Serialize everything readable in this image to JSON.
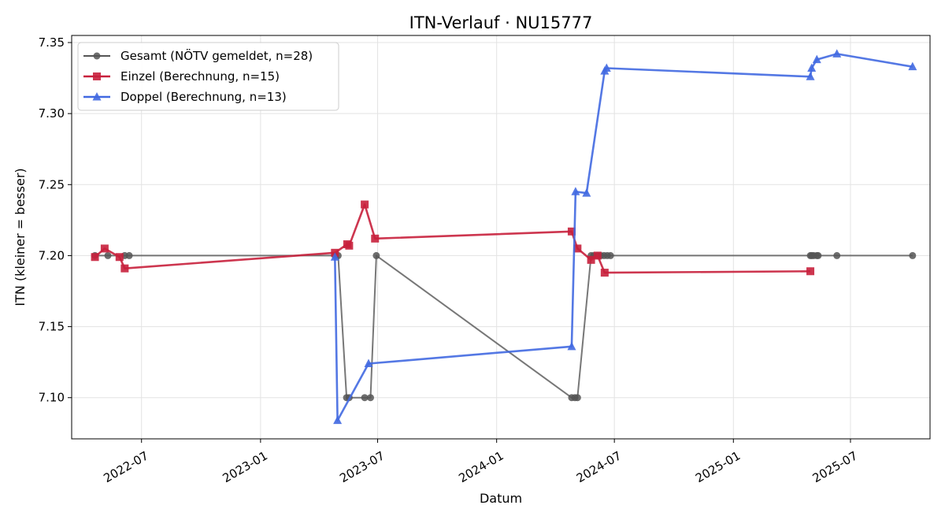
{
  "chart_data": {
    "type": "line",
    "title": "ITN-Verlauf · NU15777",
    "xlabel": "Datum",
    "ylabel": "ITN  (kleiner = besser)",
    "xlim": [
      "2022-03-15",
      "2025-11-01"
    ],
    "ylim": [
      7.071,
      7.355
    ],
    "grid": true,
    "legend_position": "top-left",
    "x_ticks": [
      "2022-07-01",
      "2023-01-01",
      "2023-07-01",
      "2024-01-01",
      "2024-07-01",
      "2025-01-01",
      "2025-07-01"
    ],
    "x_tick_labels": [
      "2022-07",
      "2023-01",
      "2023-07",
      "2024-01",
      "2024-07",
      "2025-01",
      "2025-07"
    ],
    "y_ticks": [
      7.1,
      7.15,
      7.2,
      7.25,
      7.3,
      7.35
    ],
    "y_tick_labels": [
      "7.10",
      "7.15",
      "7.20",
      "7.25",
      "7.30",
      "7.35"
    ],
    "series": [
      {
        "name": "Gesamt (NÖTV gemeldet, n=28)",
        "color": "#555555",
        "marker": "circle",
        "points": [
          {
            "x": "2022-04-20",
            "y": 7.2
          },
          {
            "x": "2022-05-10",
            "y": 7.2
          },
          {
            "x": "2022-06-05",
            "y": 7.2
          },
          {
            "x": "2022-06-12",
            "y": 7.2
          },
          {
            "x": "2023-04-26",
            "y": 7.2
          },
          {
            "x": "2023-05-01",
            "y": 7.2
          },
          {
            "x": "2023-05-14",
            "y": 7.1
          },
          {
            "x": "2023-05-18",
            "y": 7.1
          },
          {
            "x": "2023-06-11",
            "y": 7.1
          },
          {
            "x": "2023-06-20",
            "y": 7.1
          },
          {
            "x": "2023-06-29",
            "y": 7.2
          },
          {
            "x": "2024-04-26",
            "y": 7.1
          },
          {
            "x": "2024-05-01",
            "y": 7.1
          },
          {
            "x": "2024-05-05",
            "y": 7.1
          },
          {
            "x": "2024-05-26",
            "y": 7.2
          },
          {
            "x": "2024-05-30",
            "y": 7.2
          },
          {
            "x": "2024-06-05",
            "y": 7.2
          },
          {
            "x": "2024-06-10",
            "y": 7.2
          },
          {
            "x": "2024-06-15",
            "y": 7.2
          },
          {
            "x": "2024-06-20",
            "y": 7.2
          },
          {
            "x": "2024-06-25",
            "y": 7.2
          },
          {
            "x": "2025-04-30",
            "y": 7.2
          },
          {
            "x": "2025-05-02",
            "y": 7.2
          },
          {
            "x": "2025-05-05",
            "y": 7.2
          },
          {
            "x": "2025-05-10",
            "y": 7.2
          },
          {
            "x": "2025-05-12",
            "y": 7.2
          },
          {
            "x": "2025-06-10",
            "y": 7.2
          },
          {
            "x": "2025-10-05",
            "y": 7.2
          }
        ]
      },
      {
        "name": "Einzel (Berechnung, n=15)",
        "color": "#c8203c",
        "marker": "square",
        "points": [
          {
            "x": "2022-04-20",
            "y": 7.199
          },
          {
            "x": "2022-05-05",
            "y": 7.205
          },
          {
            "x": "2022-05-28",
            "y": 7.199
          },
          {
            "x": "2022-06-05",
            "y": 7.191
          },
          {
            "x": "2023-04-26",
            "y": 7.202
          },
          {
            "x": "2023-05-15",
            "y": 7.208
          },
          {
            "x": "2023-05-18",
            "y": 7.207
          },
          {
            "x": "2023-06-11",
            "y": 7.236
          },
          {
            "x": "2023-06-27",
            "y": 7.212
          },
          {
            "x": "2024-04-26",
            "y": 7.217
          },
          {
            "x": "2024-05-05",
            "y": 7.205
          },
          {
            "x": "2024-05-26",
            "y": 7.197
          },
          {
            "x": "2024-06-05",
            "y": 7.2
          },
          {
            "x": "2024-06-16",
            "y": 7.188
          },
          {
            "x": "2025-04-30",
            "y": 7.189
          }
        ]
      },
      {
        "name": "Doppel (Berechnung, n=13)",
        "color": "#4169e1",
        "marker": "triangle",
        "points": [
          {
            "x": "2023-04-26",
            "y": 7.199
          },
          {
            "x": "2023-04-30",
            "y": 7.084
          },
          {
            "x": "2023-06-17",
            "y": 7.124
          },
          {
            "x": "2024-04-26",
            "y": 7.136
          },
          {
            "x": "2024-05-02",
            "y": 7.245
          },
          {
            "x": "2024-05-19",
            "y": 7.244
          },
          {
            "x": "2024-06-16",
            "y": 7.33
          },
          {
            "x": "2024-06-19",
            "y": 7.332
          },
          {
            "x": "2025-04-30",
            "y": 7.326
          },
          {
            "x": "2025-05-02",
            "y": 7.332
          },
          {
            "x": "2025-05-10",
            "y": 7.338
          },
          {
            "x": "2025-06-10",
            "y": 7.342
          },
          {
            "x": "2025-10-05",
            "y": 7.333
          }
        ]
      }
    ]
  }
}
